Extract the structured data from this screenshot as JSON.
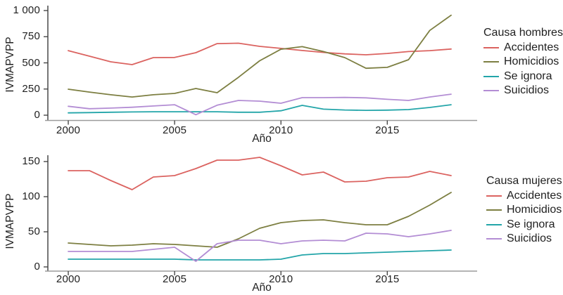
{
  "chart_data": [
    {
      "type": "line",
      "title": "Causa hombres",
      "xlabel": "Año",
      "ylabel": "IVMAPVPP",
      "x": [
        2000,
        2001,
        2002,
        2003,
        2004,
        2005,
        2006,
        2007,
        2008,
        2009,
        2010,
        2011,
        2012,
        2013,
        2014,
        2015,
        2016,
        2017,
        2018
      ],
      "xlim": [
        1999,
        2019
      ],
      "ylim": [
        0,
        1000
      ],
      "x_ticks": [
        {
          "value": 2000,
          "label": "2000"
        },
        {
          "value": 2005,
          "label": "2005"
        },
        {
          "value": 2010,
          "label": "2010"
        },
        {
          "value": 2015,
          "label": "2015"
        }
      ],
      "y_ticks": [
        {
          "value": 0,
          "label": "0"
        },
        {
          "value": 250,
          "label": "250"
        },
        {
          "value": 500,
          "label": "500"
        },
        {
          "value": 750,
          "label": "750"
        },
        {
          "value": 1000,
          "label": "1 000"
        }
      ],
      "grid": false,
      "legend_position": "right",
      "series": [
        {
          "name": "Accidentes",
          "color": "#db6360",
          "values": [
            617,
            564,
            510,
            483,
            550,
            552,
            597,
            684,
            688,
            658,
            638,
            618,
            600,
            586,
            577,
            590,
            608,
            617,
            632
          ]
        },
        {
          "name": "Homicidios",
          "color": "#7d7f42",
          "values": [
            248,
            221,
            195,
            174,
            195,
            208,
            255,
            215,
            362,
            520,
            630,
            655,
            608,
            550,
            448,
            457,
            530,
            810,
            955
          ]
        },
        {
          "name": "Se ignora",
          "color": "#23a5a9",
          "values": [
            22,
            25,
            28,
            31,
            33,
            33,
            33,
            33,
            28,
            28,
            42,
            94,
            58,
            50,
            46,
            48,
            54,
            74,
            100
          ]
        },
        {
          "name": "Suicidios",
          "color": "#b38dd4",
          "values": [
            85,
            62,
            68,
            76,
            88,
            100,
            5,
            95,
            141,
            134,
            114,
            168,
            168,
            170,
            166,
            152,
            141,
            174,
            201
          ]
        }
      ]
    },
    {
      "type": "line",
      "title": "Causa mujeres",
      "xlabel": "Año",
      "ylabel": "IVMAPVPP",
      "x": [
        2000,
        2001,
        2002,
        2003,
        2004,
        2005,
        2006,
        2007,
        2008,
        2009,
        2010,
        2011,
        2012,
        2013,
        2014,
        2015,
        2016,
        2017,
        2018
      ],
      "xlim": [
        1999,
        2019
      ],
      "ylim": [
        0,
        150
      ],
      "x_ticks": [
        {
          "value": 2000,
          "label": "2000"
        },
        {
          "value": 2005,
          "label": "2005"
        },
        {
          "value": 2010,
          "label": "2010"
        },
        {
          "value": 2015,
          "label": "2015"
        }
      ],
      "y_ticks": [
        {
          "value": 0,
          "label": "0"
        },
        {
          "value": 50,
          "label": "50"
        },
        {
          "value": 100,
          "label": "100"
        },
        {
          "value": 150,
          "label": "150"
        }
      ],
      "grid": false,
      "legend_position": "right",
      "series": [
        {
          "name": "Accidentes",
          "color": "#db6360",
          "values": [
            137,
            137,
            123,
            110,
            128,
            130,
            140,
            152,
            152,
            156,
            144,
            131,
            135,
            121,
            122,
            127,
            128,
            136,
            130
          ]
        },
        {
          "name": "Homicidios",
          "color": "#7d7f42",
          "values": [
            34,
            32,
            30,
            31,
            33,
            32,
            30,
            28,
            40,
            55,
            63,
            66,
            67,
            63,
            60,
            60,
            72,
            88,
            106
          ]
        },
        {
          "name": "Se ignora",
          "color": "#23a5a9",
          "values": [
            11,
            11,
            11,
            11,
            11,
            11,
            10,
            10,
            10,
            10,
            11,
            17,
            19,
            19,
            20,
            21,
            22,
            23,
            24
          ]
        },
        {
          "name": "Suicidios",
          "color": "#b38dd4",
          "values": [
            22,
            22,
            22,
            22,
            25,
            28,
            8,
            33,
            38,
            38,
            33,
            37,
            38,
            37,
            48,
            47,
            43,
            47,
            52
          ]
        }
      ]
    }
  ],
  "axis_colors": {
    "x_axis": "#9b9b9b",
    "y_axis": "#3c3c3c",
    "tick": "#3c3c3c",
    "text": "#1f1f1f"
  }
}
